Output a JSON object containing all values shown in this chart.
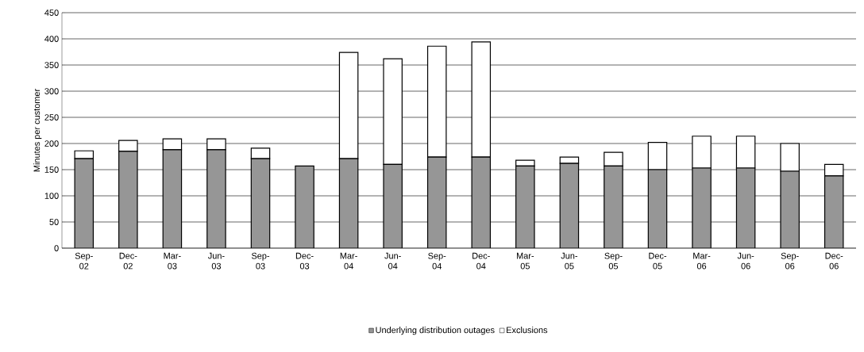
{
  "chart_data": {
    "type": "bar",
    "stacked": true,
    "ylabel": "Minutes per customer",
    "categories": [
      "Sep-02",
      "Dec-02",
      "Mar-03",
      "Jun-03",
      "Sep-03",
      "Dec-03",
      "Mar-04",
      "Jun-04",
      "Sep-04",
      "Dec-04",
      "Mar-05",
      "Jun-05",
      "Sep-05",
      "Dec-05",
      "Mar-06",
      "Jun-06",
      "Sep-06",
      "Dec-06"
    ],
    "series": [
      {
        "name": "Underlying distribution outages",
        "color": "#969696",
        "values": [
          171,
          185,
          188,
          188,
          171,
          157,
          171,
          160,
          174,
          174,
          157,
          162,
          157,
          150,
          153,
          153,
          147,
          138
        ]
      },
      {
        "name": "Exclusions",
        "color": "#ffffff",
        "values": [
          15,
          21,
          21,
          21,
          20,
          0,
          203,
          202,
          212,
          220,
          11,
          12,
          26,
          52,
          61,
          61,
          53,
          22
        ]
      }
    ],
    "ylim": [
      0,
      450
    ],
    "yticks": [
      0,
      50,
      100,
      150,
      200,
      250,
      300,
      350,
      400,
      450
    ],
    "grid": "y",
    "legend": "bottom"
  }
}
